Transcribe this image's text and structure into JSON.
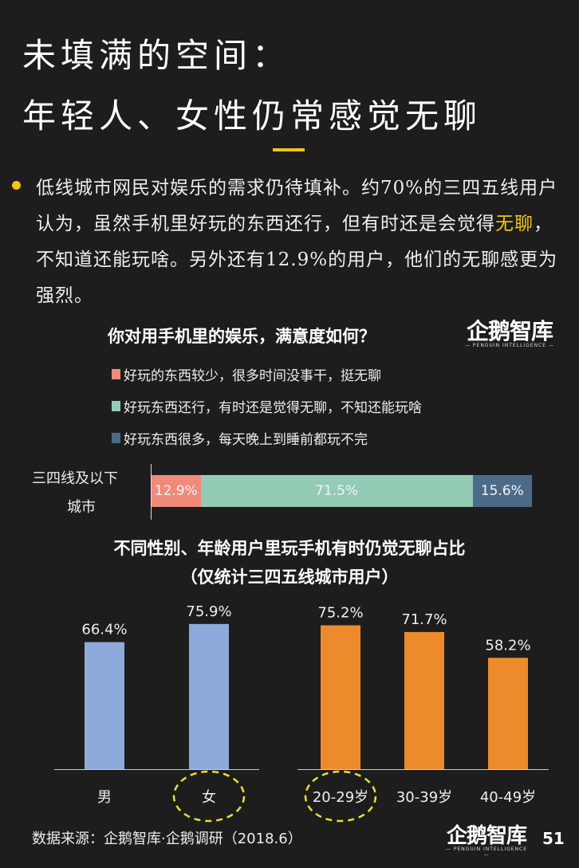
{
  "header": {
    "title_line1": "未填满的空间：",
    "title_line2": "年轻人、女性仍常感觉无聊",
    "accent": "#f2c418"
  },
  "bullet": {
    "before": "低线城市网民对娱乐的需求仍待填补。约70%的三四五线用户认为，虽然手机里好玩的东西还行，但有时还是会觉得",
    "highlight": "无聊",
    "after": "，不知道还能玩啥。另外还有12.9%的用户，他们的无聊感更为强烈。"
  },
  "logo": {
    "cn": "企鹅智库",
    "en": "— PENGUIN INTELLIGENCE —"
  },
  "chart_data": [
    {
      "type": "bar",
      "orientation": "horizontal",
      "stacked": true,
      "title": "你对用手机里的娱乐，满意度如何？",
      "categories": [
        "三四线及以下城市"
      ],
      "category_label_lines": [
        "三四线及以下",
        "城市"
      ],
      "series": [
        {
          "name": "好玩的东西较少，很多时间没事干，挺无聊",
          "values": [
            12.9
          ],
          "label": "12.9%",
          "color": "#f08a7a"
        },
        {
          "name": "好玩东西还行，有时还是觉得无聊，不知还能玩啥",
          "values": [
            71.5
          ],
          "label": "71.5%",
          "color": "#93cbb4"
        },
        {
          "name": "好玩东西很多，每天晚上到睡前都玩不完",
          "values": [
            15.6
          ],
          "label": "15.6%",
          "color": "#4d6b88"
        }
      ],
      "legend": "top"
    },
    {
      "type": "bar",
      "title": "不同性别、年龄用户里玩手机有时仍觉无聊占比",
      "subtitle": "（仅统计三四五线城市用户）",
      "groups": [
        {
          "categories": [
            "男",
            "女"
          ],
          "values": [
            66.4,
            75.9
          ],
          "labels": [
            "66.4%",
            "75.9%"
          ],
          "color": "#8eaadb"
        },
        {
          "categories": [
            "20-29岁",
            "30-39岁",
            "40-49岁"
          ],
          "values": [
            75.2,
            71.7,
            58.2
          ],
          "labels": [
            "75.2%",
            "71.7%",
            "58.2%"
          ],
          "color": "#ed8b2c"
        }
      ],
      "highlighted": [
        "女",
        "20-29岁"
      ],
      "ylim": [
        0,
        100
      ]
    }
  ],
  "footer": {
    "source": "数据来源：企鹅智库·企鹅调研（2018.6）",
    "page": "51"
  }
}
